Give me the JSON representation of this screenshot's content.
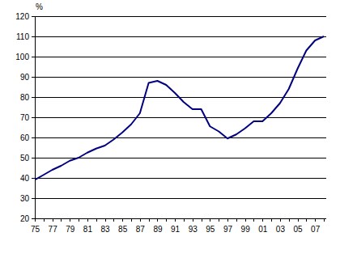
{
  "chart_data": {
    "type": "line",
    "y_label": "%",
    "categories": [
      "75",
      null,
      "77",
      null,
      "79",
      null,
      "81",
      null,
      "83",
      null,
      "85",
      null,
      "87",
      null,
      "89",
      null,
      "91",
      null,
      "93",
      null,
      "95",
      null,
      "97",
      null,
      "99",
      null,
      "01",
      null,
      "03",
      null,
      "05",
      null,
      "07",
      null
    ],
    "values": [
      39,
      41.5,
      44,
      46,
      48.5,
      50,
      52.5,
      54.5,
      56,
      59,
      62.5,
      66.5,
      72,
      87,
      88,
      86,
      82,
      77.5,
      74,
      74,
      65.5,
      63,
      59.5,
      61.5,
      64.5,
      68,
      68,
      72,
      77,
      84,
      94,
      103,
      108,
      110
    ],
    "color": "#000080",
    "ylim": [
      20,
      120
    ],
    "yticks": [
      20,
      30,
      40,
      50,
      60,
      70,
      80,
      90,
      100,
      110,
      120
    ],
    "grid": true
  }
}
